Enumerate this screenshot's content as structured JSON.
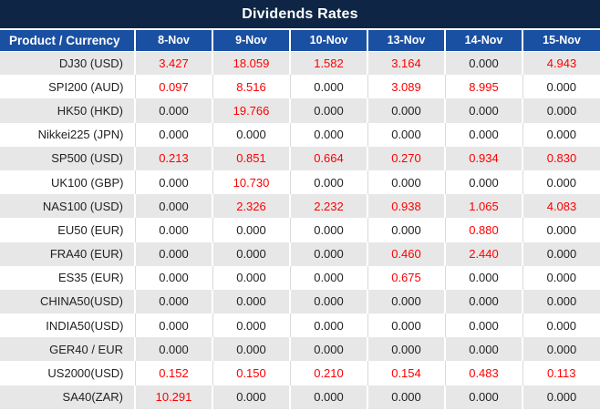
{
  "title": "Dividends Rates",
  "theme": {
    "title_bg": "#0e2545",
    "header_bg": "#1a50a2",
    "header_text": "#ffffff",
    "row_bg": "#ffffff",
    "row_alt_bg": "#e7e7e7",
    "text": "#222222",
    "nonzero_value": "#fe0000",
    "white_row_divider": "#d9d9d9"
  },
  "chart_data": {
    "type": "table",
    "title": "Dividends Rates",
    "columns": [
      "Product / Currency",
      "8-Nov",
      "9-Nov",
      "10-Nov",
      "13-Nov",
      "14-Nov",
      "15-Nov"
    ],
    "rows": [
      {
        "product": "DJ30 (USD)",
        "values": [
          "3.427",
          "18.059",
          "1.582",
          "3.164",
          "0.000",
          "4.943"
        ]
      },
      {
        "product": "SPI200 (AUD)",
        "values": [
          "0.097",
          "8.516",
          "0.000",
          "3.089",
          "8.995",
          "0.000"
        ]
      },
      {
        "product": "HK50 (HKD)",
        "values": [
          "0.000",
          "19.766",
          "0.000",
          "0.000",
          "0.000",
          "0.000"
        ]
      },
      {
        "product": "Nikkei225 (JPN)",
        "values": [
          "0.000",
          "0.000",
          "0.000",
          "0.000",
          "0.000",
          "0.000"
        ]
      },
      {
        "product": "SP500 (USD)",
        "values": [
          "0.213",
          "0.851",
          "0.664",
          "0.270",
          "0.934",
          "0.830"
        ]
      },
      {
        "product": "UK100 (GBP)",
        "values": [
          "0.000",
          "10.730",
          "0.000",
          "0.000",
          "0.000",
          "0.000"
        ]
      },
      {
        "product": "NAS100 (USD)",
        "values": [
          "0.000",
          "2.326",
          "2.232",
          "0.938",
          "1.065",
          "4.083"
        ]
      },
      {
        "product": "EU50 (EUR)",
        "values": [
          "0.000",
          "0.000",
          "0.000",
          "0.000",
          "0.880",
          "0.000"
        ]
      },
      {
        "product": "FRA40 (EUR)",
        "values": [
          "0.000",
          "0.000",
          "0.000",
          "0.460",
          "2.440",
          "0.000"
        ]
      },
      {
        "product": "ES35 (EUR)",
        "values": [
          "0.000",
          "0.000",
          "0.000",
          "0.675",
          "0.000",
          "0.000"
        ]
      },
      {
        "product": "CHINA50(USD)",
        "values": [
          "0.000",
          "0.000",
          "0.000",
          "0.000",
          "0.000",
          "0.000"
        ]
      },
      {
        "product": "INDIA50(USD)",
        "values": [
          "0.000",
          "0.000",
          "0.000",
          "0.000",
          "0.000",
          "0.000"
        ]
      },
      {
        "product": "GER40 / EUR",
        "values": [
          "0.000",
          "0.000",
          "0.000",
          "0.000",
          "0.000",
          "0.000"
        ]
      },
      {
        "product": "US2000(USD)",
        "values": [
          "0.152",
          "0.150",
          "0.210",
          "0.154",
          "0.483",
          "0.113"
        ]
      },
      {
        "product": "SA40(ZAR)",
        "values": [
          "10.291",
          "0.000",
          "0.000",
          "0.000",
          "0.000",
          "0.000"
        ]
      }
    ],
    "layout_hints": {
      "zero_value_color": "black",
      "nonzero_value_color": "red",
      "alternating_rows": true,
      "first_row_shaded": true
    }
  }
}
